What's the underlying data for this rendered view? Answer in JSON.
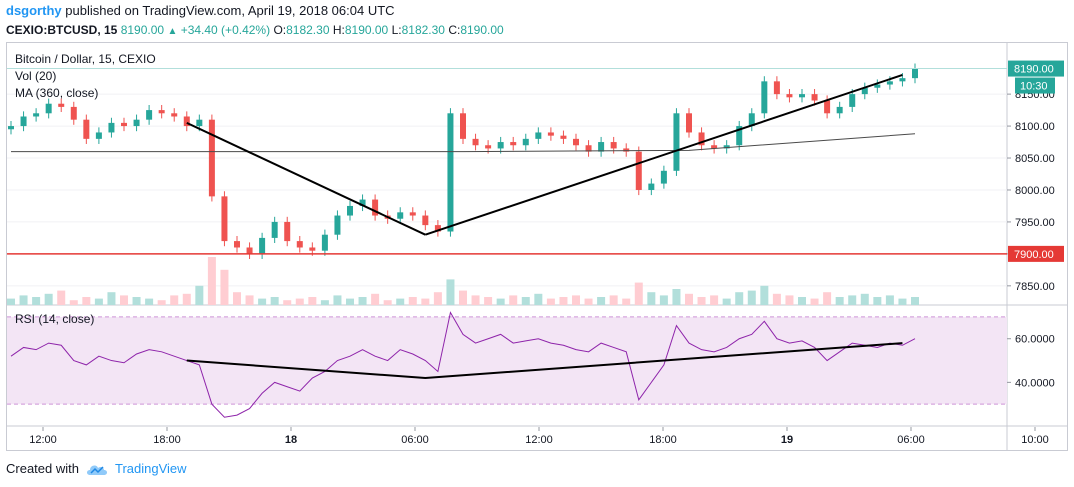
{
  "header": {
    "author": "dsgorthy",
    "published": "published on TradingView.com, April 19, 2018 06:04 UTC"
  },
  "ohlc": {
    "symbol": "CEXIO:BTCUSD, 15",
    "last": "8190.00",
    "arrow": "▲",
    "change": "+34.40 (+0.42%)",
    "o_label": "O:",
    "o": "8182.30",
    "h_label": "H:",
    "h": "8190.00",
    "l_label": "L:",
    "l": "8182.30",
    "c_label": "C:",
    "c": "8190.00"
  },
  "legend": {
    "title": "Bitcoin / Dollar, 15, CEXIO",
    "vol": "Vol (20)",
    "ma": "MA (360, close)",
    "rsi": "RSI (14, close)"
  },
  "badges": {
    "last_price": "8190.00",
    "countdown": "10:30",
    "support": "7900.00"
  },
  "footer": {
    "created_with": "Created with",
    "brand": "TradingView"
  },
  "colors": {
    "up": "#26a69a",
    "down": "#ef5350",
    "support": "#e53935",
    "ma": "#4a4a4a",
    "rsi_line": "#8e24aa",
    "rsi_band": "#f3e5f5",
    "trend": "#000000"
  },
  "chart_data": [
    {
      "type": "candlestick",
      "title": "Bitcoin / Dollar, 15, CEXIO",
      "x_ticks": [
        "12:00",
        "18:00",
        "18",
        "06:00",
        "12:00",
        "18:00",
        "19",
        "06:00",
        "10:00"
      ],
      "y_ticks": [
        8150,
        8100,
        8050,
        8000,
        7950,
        7900,
        7850
      ],
      "ylim": [
        7820,
        8230
      ],
      "series": [
        {
          "name": "close",
          "x": [
            0,
            4,
            8,
            12,
            16,
            20,
            24,
            28,
            32,
            36,
            40,
            44,
            48,
            52,
            56,
            60,
            64,
            68,
            72,
            76,
            80,
            84,
            88,
            92,
            96,
            100,
            104,
            108,
            112,
            116,
            120,
            124,
            128,
            132,
            136,
            140,
            144,
            148,
            152,
            156,
            160,
            164,
            168,
            172,
            176,
            180,
            184,
            188,
            192,
            196,
            200,
            204,
            208,
            212,
            216,
            220,
            224,
            228,
            232,
            236,
            240,
            244,
            248,
            252,
            256,
            260,
            264,
            268,
            272,
            276,
            280,
            284,
            288
          ],
          "values": [
            8100,
            8115,
            8120,
            8135,
            8130,
            8110,
            8080,
            8090,
            8105,
            8100,
            8110,
            8125,
            8120,
            8115,
            8100,
            8110,
            7990,
            7920,
            7910,
            7900,
            7925,
            7950,
            7920,
            7910,
            7905,
            7930,
            7960,
            7975,
            7985,
            7960,
            7955,
            7965,
            7960,
            7945,
            7935,
            8120,
            8080,
            8070,
            8065,
            8075,
            8070,
            8080,
            8090,
            8085,
            8080,
            8070,
            8060,
            8075,
            8065,
            8060,
            8000,
            8010,
            8030,
            8120,
            8090,
            8070,
            8065,
            8070,
            8100,
            8120,
            8170,
            8150,
            8145,
            8150,
            8140,
            8120,
            8130,
            8150,
            8160,
            8165,
            8170,
            8175,
            8190
          ]
        },
        {
          "name": "MA (360, close)",
          "x": [
            0,
            72,
            144,
            216,
            288
          ],
          "values": [
            8060,
            8060,
            8060,
            8062,
            8088
          ]
        }
      ],
      "support_level": 7900,
      "trendlines": [
        {
          "from": [
            56,
            8105
          ],
          "to": [
            132,
            7930
          ]
        },
        {
          "from": [
            132,
            7930
          ],
          "to": [
            284,
            8180
          ]
        }
      ],
      "volume": [
        4,
        6,
        5,
        7,
        9,
        3,
        5,
        4,
        8,
        6,
        5,
        4,
        3,
        6,
        7,
        12,
        30,
        22,
        8,
        6,
        4,
        5,
        3,
        4,
        5,
        3,
        6,
        4,
        5,
        7,
        3,
        4,
        5,
        4,
        8,
        16,
        9,
        6,
        5,
        4,
        6,
        5,
        7,
        4,
        5,
        6,
        4,
        5,
        6,
        4,
        14,
        8,
        6,
        10,
        7,
        5,
        6,
        4,
        8,
        9,
        12,
        7,
        6,
        5,
        4,
        8,
        5,
        6,
        7,
        5,
        6,
        4,
        5
      ]
    },
    {
      "type": "line",
      "title": "RSI (14, close)",
      "y_ticks": [
        60,
        40
      ],
      "ylim": [
        20,
        75
      ],
      "band": [
        30,
        70
      ],
      "series": [
        {
          "name": "RSI",
          "x": [
            0,
            4,
            8,
            12,
            16,
            20,
            24,
            28,
            32,
            36,
            40,
            44,
            48,
            52,
            56,
            60,
            64,
            68,
            72,
            76,
            80,
            84,
            88,
            92,
            96,
            100,
            104,
            108,
            112,
            116,
            120,
            124,
            128,
            132,
            136,
            140,
            144,
            148,
            152,
            156,
            160,
            164,
            168,
            172,
            176,
            180,
            184,
            188,
            192,
            196,
            200,
            204,
            208,
            212,
            216,
            220,
            224,
            228,
            232,
            236,
            240,
            244,
            248,
            252,
            256,
            260,
            264,
            268,
            272,
            276,
            280,
            284,
            288
          ],
          "values": [
            52,
            56,
            55,
            58,
            57,
            50,
            48,
            52,
            50,
            49,
            53,
            55,
            54,
            52,
            50,
            48,
            30,
            24,
            25,
            28,
            35,
            40,
            38,
            36,
            42,
            45,
            50,
            52,
            55,
            52,
            50,
            55,
            53,
            50,
            45,
            72,
            62,
            58,
            60,
            62,
            58,
            59,
            60,
            58,
            57,
            55,
            54,
            58,
            56,
            54,
            32,
            40,
            48,
            66,
            58,
            55,
            54,
            56,
            60,
            62,
            68,
            60,
            58,
            59,
            56,
            50,
            54,
            58,
            57,
            56,
            58,
            57,
            60
          ]
        },
        {
          "name": "RSI trend",
          "x": [
            56,
            132,
            284
          ],
          "values": [
            50,
            42,
            58
          ]
        }
      ]
    }
  ]
}
